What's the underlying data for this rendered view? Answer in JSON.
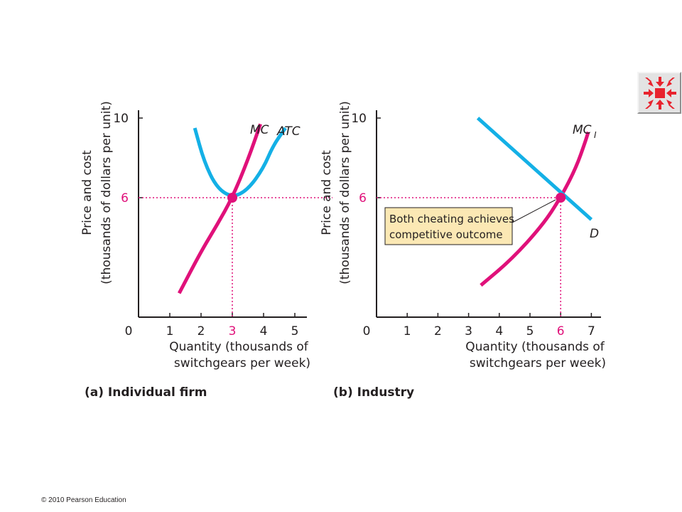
{
  "nav": {
    "icon": "arrows-inward-icon",
    "color": "#e8232e"
  },
  "footer": {
    "copyright": "© 2010 Pearson Education"
  },
  "colors": {
    "cost_curve": "#e0117a",
    "atc_curve": "#14b0e6",
    "demand_curve": "#14b0e6",
    "callout_bg": "#fbe8b4"
  },
  "chart_data": [
    {
      "type": "line",
      "panel_title": "(a) Individual firm",
      "xlabel": [
        "Quantity (thousands of",
        "switchgears per week)"
      ],
      "ylabel": [
        "Price and cost",
        "(thousands of dollars per unit)"
      ],
      "xlim": [
        0,
        5.3
      ],
      "ylim": [
        0,
        10.4
      ],
      "x_ticks": [
        "0",
        "1",
        "2",
        "3",
        "4",
        "5"
      ],
      "y_ticks": [
        "6",
        "10"
      ],
      "highlight": {
        "x": 3,
        "y": 6
      },
      "series": [
        {
          "name": "MC",
          "points": [
            [
              1.3,
              1.2
            ],
            [
              2.0,
              3.3
            ],
            [
              2.5,
              4.6
            ],
            [
              3.0,
              6.0
            ],
            [
              3.5,
              7.9
            ],
            [
              3.9,
              9.7
            ]
          ]
        },
        {
          "name": "ATC",
          "points": [
            [
              1.8,
              9.5
            ],
            [
              2.1,
              7.8
            ],
            [
              2.5,
              6.5
            ],
            [
              3.0,
              6.0
            ],
            [
              3.5,
              6.4
            ],
            [
              4.0,
              7.5
            ],
            [
              4.3,
              8.6
            ],
            [
              4.7,
              9.5
            ]
          ]
        }
      ]
    },
    {
      "type": "line",
      "panel_title": "(b) Industry",
      "xlabel": [
        "Quantity (thousands of",
        "switchgears per week)"
      ],
      "ylabel": [
        "Price and cost",
        "(thousands of dollars per unit)"
      ],
      "xlim": [
        0,
        7.3
      ],
      "ylim": [
        0,
        10.4
      ],
      "x_ticks": [
        "0",
        "1",
        "2",
        "3",
        "4",
        "5",
        "6",
        "7"
      ],
      "y_ticks": [
        "6",
        "10"
      ],
      "highlight": {
        "x": 6,
        "y": 6
      },
      "annotation": [
        "Both cheating achieves",
        "competitive outcome"
      ],
      "series": [
        {
          "name": "MC",
          "subscript": "I",
          "points": [
            [
              3.4,
              1.6
            ],
            [
              4.4,
              2.9
            ],
            [
              5.4,
              4.6
            ],
            [
              6.0,
              6.0
            ],
            [
              6.5,
              7.5
            ],
            [
              6.8,
              8.8
            ],
            [
              6.9,
              9.3
            ]
          ]
        },
        {
          "name": "D",
          "points": [
            [
              3.3,
              10.0
            ],
            [
              7.0,
              4.9
            ]
          ]
        }
      ]
    }
  ]
}
